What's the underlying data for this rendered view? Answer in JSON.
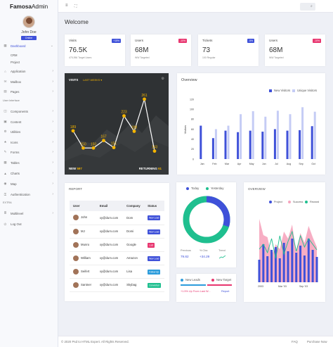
{
  "brand": {
    "bold": "Famosa",
    "light": "Admin"
  },
  "user": {
    "name": "John Doe",
    "status": "Online"
  },
  "nav": [
    {
      "label": "Dashboard",
      "active": true,
      "icon": "▦",
      "chev": "⌄"
    },
    {
      "label": "Application",
      "icon": "⌂",
      "chev": "›"
    },
    {
      "label": "Mailbox",
      "icon": "✉",
      "chev": "›"
    },
    {
      "label": "Pages",
      "icon": "▤",
      "chev": "›"
    },
    {
      "label": "Components",
      "icon": "◫",
      "chev": "›"
    },
    {
      "label": "Content",
      "icon": "▣",
      "chev": "›"
    },
    {
      "label": "Utilities",
      "icon": "⚙",
      "chev": "›"
    },
    {
      "label": "Icons",
      "icon": "★",
      "chev": "›"
    },
    {
      "label": "Forms",
      "icon": "✎",
      "chev": "›"
    },
    {
      "label": "Tables",
      "icon": "▦",
      "chev": "›"
    },
    {
      "label": "Charts",
      "icon": "▲",
      "chev": "›"
    },
    {
      "label": "Map",
      "icon": "◉",
      "chev": "›"
    },
    {
      "label": "Authentication",
      "icon": "⚿",
      "chev": "›"
    },
    {
      "label": "Multilevel",
      "icon": "≣",
      "chev": "›"
    },
    {
      "label": "Log Out",
      "icon": "⏻",
      "chev": ""
    }
  ],
  "subnav": [
    "CRM",
    "Project"
  ],
  "sections": {
    "ui": "User Interface",
    "extra": "EXTRA"
  },
  "welcome": "Welcome",
  "stats": [
    {
      "title": "Visits",
      "value": "76.5K",
      "sub": "475,956 Target Users",
      "badge": "+15%",
      "color": "#3f51d9"
    },
    {
      "title": "Users",
      "value": "68M",
      "sub": "WW Targeted",
      "badge": "-10%",
      "color": "#e8366f"
    },
    {
      "title": "Tickets",
      "value": "73",
      "sub": "100 Regular",
      "badge": "-5%",
      "color": "#3f51d9"
    },
    {
      "title": "Users",
      "value": "68M",
      "sub": "WW Targeted",
      "badge": "-10%",
      "color": "#e8366f"
    }
  ],
  "visits": {
    "title": "VISITS",
    "subtitle": "LAST WEEKS ▾",
    "new_label": "NEW",
    "new_value": "597",
    "ret_label": "RETURNING",
    "ret_value": "61",
    "points": [
      189,
      150,
      150,
      167,
      151,
      223,
      188,
      261,
      143
    ],
    "point_labels": [
      "189",
      "150",
      "150",
      "167",
      "151",
      "223",
      "188",
      "261",
      "143"
    ]
  },
  "overview": {
    "title": "Overview",
    "legend": [
      "New Visitors",
      "Unique Visitors"
    ],
    "ylabel": "Visitors"
  },
  "chart_data": [
    {
      "type": "bar",
      "title": "Overview",
      "ylabel": "Visitors",
      "categories": [
        "Jan",
        "Feb",
        "Mar",
        "Apr",
        "May",
        "Jun",
        "Jul",
        "Aug",
        "Sep",
        "Oct"
      ],
      "ylim": [
        0,
        120
      ],
      "yticks": [
        0,
        20,
        40,
        60,
        80,
        100,
        120
      ],
      "series": [
        {
          "name": "New Visitors",
          "color": "#3f51d9",
          "values": [
            67,
            42,
            57,
            54,
            57,
            55,
            60,
            57,
            58,
            66
          ]
        },
        {
          "name": "Unique Visitors",
          "color": "#c5ccf5",
          "values": [
            0,
            60,
            67,
            90,
            96,
            85,
            97,
            90,
            104,
            95
          ]
        }
      ]
    },
    {
      "type": "line",
      "title": "VISITS",
      "subtitle": "LAST WEEKS",
      "values": [
        189,
        150,
        150,
        167,
        151,
        223,
        188,
        261,
        143
      ]
    },
    {
      "type": "pie",
      "legend": [
        "Today",
        "Yesterday"
      ],
      "values": [
        32,
        68
      ],
      "colors": [
        "#3f51d9",
        "#1fbf8f"
      ]
    },
    {
      "type": "area",
      "title": "OVERVIEW",
      "legend": [
        "Project",
        "Success",
        "Reward"
      ],
      "categories": [
        "2003",
        "Mar '03",
        "Sep '03"
      ]
    }
  ],
  "report": {
    "title": "REPORT",
    "columns": [
      "User",
      "Email",
      "Company",
      "Status"
    ],
    "rows": [
      {
        "user": "John",
        "email": "xy@dum.com",
        "company": "Dom",
        "status": "New Lead",
        "color": "#3f51d9"
      },
      {
        "user": "MJ",
        "email": "xy@dum.com",
        "company": "Domi",
        "status": "New Lead",
        "color": "#3f51d9"
      },
      {
        "user": "Munro",
        "email": "xy@dum.com",
        "company": "Google",
        "status": "Lost",
        "color": "#e8366f"
      },
      {
        "user": "William",
        "email": "xy@dum.com",
        "company": "Amazon",
        "status": "New Lead",
        "color": "#3f51d9"
      },
      {
        "user": "Seifert",
        "email": "xy@dum.com",
        "company": "Lisa",
        "status": "Follow Up",
        "color": "#2c9cdb"
      },
      {
        "user": "Santner",
        "email": "xy@dum.com",
        "company": "Skybag",
        "status": "Converted",
        "color": "#1fbf8f"
      }
    ]
  },
  "donut": {
    "legend": [
      "Today",
      "Yesterday"
    ],
    "stats": [
      {
        "label": "Previous",
        "value": "79.82"
      },
      {
        "label": "% Cha",
        "value": "+34.29"
      },
      {
        "label": "Trend",
        "value": ""
      }
    ]
  },
  "leads": {
    "legend": [
      "New Leads",
      "New Target"
    ],
    "text": "+1.5% Up From Last W...",
    "link": "Report"
  },
  "ov2": {
    "title": "OVERVIEW",
    "legend": [
      "Project",
      "Success",
      "Reward"
    ],
    "xlabels": [
      "2003",
      "Mar '03",
      "Sep '03"
    ]
  },
  "footer": {
    "copy": "© 2020 Psd to HTML Expert. All Rights Reserved.",
    "faq": "FAQ",
    "purchase": "Purchase Now"
  }
}
